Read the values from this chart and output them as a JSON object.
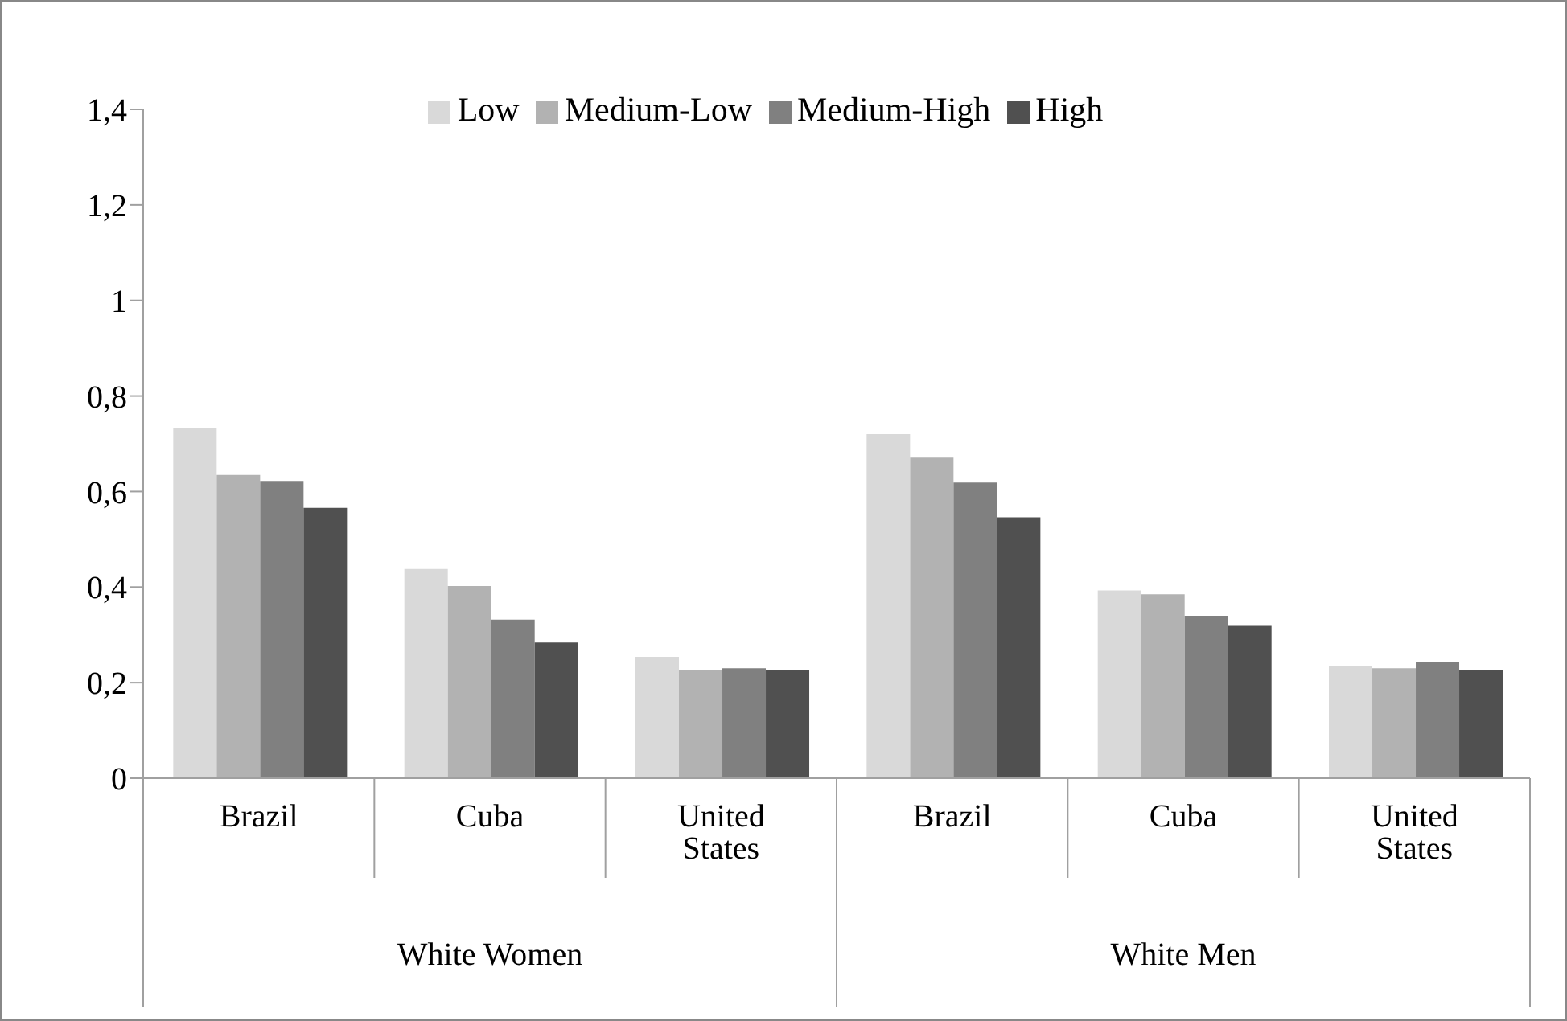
{
  "chart_data": {
    "type": "bar",
    "categories": [
      "Brazil",
      "Cuba",
      "United States",
      "Brazil",
      "Cuba",
      "United States"
    ],
    "series": [
      {
        "name": "Low",
        "color": "#d9d9d9",
        "values": [
          0.733,
          0.438,
          0.254,
          0.72,
          0.393,
          0.234
        ]
      },
      {
        "name": "Medium-Low",
        "color": "#b2b2b2",
        "values": [
          0.635,
          0.402,
          0.227,
          0.671,
          0.385,
          0.23
        ]
      },
      {
        "name": "Medium-High",
        "color": "#808080",
        "values": [
          0.622,
          0.332,
          0.23,
          0.619,
          0.34,
          0.243
        ]
      },
      {
        "name": "High",
        "color": "#505050",
        "values": [
          0.566,
          0.284,
          0.227,
          0.546,
          0.319,
          0.227
        ]
      }
    ],
    "ylim": [
      0,
      1.4
    ],
    "yticks": [
      0,
      {
        "value": 0.2,
        "label": "0,2"
      },
      {
        "value": 0.4,
        "label": "0,4"
      },
      {
        "value": 0.6,
        "label": "0,6"
      },
      {
        "value": 0.8,
        "label": "0,8"
      },
      1,
      {
        "value": 1.2,
        "label": "1,2"
      },
      {
        "value": 1.4,
        "label": "1,4"
      }
    ],
    "annotations": [
      "White Women",
      "White Men"
    ],
    "grid": false,
    "legend": "top"
  }
}
